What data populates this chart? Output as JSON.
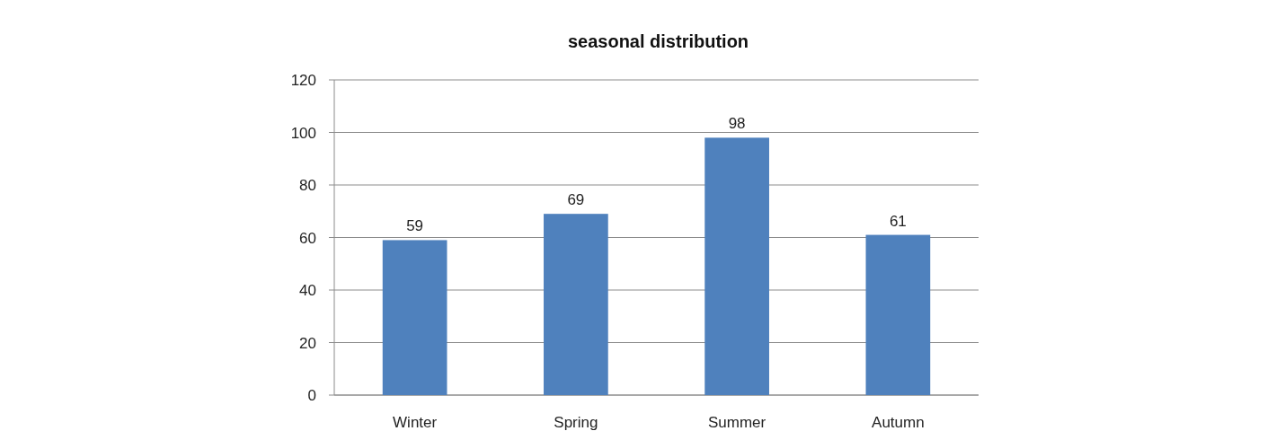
{
  "chart_data": {
    "type": "bar",
    "title": "seasonal distribution",
    "categories": [
      "Winter",
      "Spring",
      "Summer",
      "Autumn"
    ],
    "values": [
      59,
      69,
      98,
      61
    ],
    "color": "#4f81bd",
    "ylim": [
      0,
      120
    ],
    "yticks": [
      0,
      20,
      40,
      60,
      80,
      100,
      120
    ],
    "grid": "y",
    "data_labels": true
  }
}
